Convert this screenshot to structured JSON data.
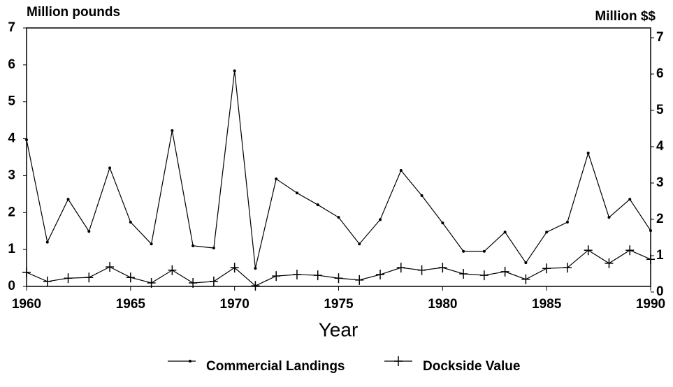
{
  "chart_data": {
    "type": "line",
    "y_label": "Million pounds",
    "y2_label": "Million $$",
    "x_label": "Year",
    "x": [
      1960,
      1961,
      1962,
      1963,
      1964,
      1965,
      1966,
      1967,
      1968,
      1969,
      1970,
      1971,
      1972,
      1973,
      1974,
      1975,
      1976,
      1977,
      1978,
      1979,
      1980,
      1981,
      1982,
      1983,
      1984,
      1985,
      1986,
      1987,
      1988,
      1989,
      1990
    ],
    "series": [
      {
        "name": "Commercial Landings",
        "color": "#000000",
        "marker": "dot",
        "values": [
          3.97,
          1.2,
          2.36,
          1.49,
          3.21,
          1.74,
          1.15,
          4.22,
          1.1,
          1.04,
          5.84,
          0.49,
          2.91,
          2.53,
          2.21,
          1.87,
          1.15,
          1.81,
          3.14,
          2.46,
          1.72,
          0.95,
          0.95,
          1.47,
          0.64,
          1.47,
          1.74,
          3.61,
          1.87,
          2.36,
          1.51
        ]
      },
      {
        "name": "Dockside Value",
        "color": "#000000",
        "marker": "plus",
        "axis": "y2",
        "values": [
          0.54,
          0.29,
          0.38,
          0.4,
          0.69,
          0.4,
          0.25,
          0.6,
          0.25,
          0.29,
          0.67,
          0.17,
          0.44,
          0.48,
          0.46,
          0.38,
          0.33,
          0.48,
          0.67,
          0.6,
          0.67,
          0.5,
          0.46,
          0.56,
          0.35,
          0.65,
          0.67,
          1.15,
          0.79,
          1.15,
          0.9
        ]
      }
    ],
    "xlim": [
      1960,
      1990
    ],
    "xticks": [
      1960,
      1965,
      1970,
      1975,
      1980,
      1985,
      1990
    ],
    "ylim": [
      0,
      7
    ],
    "yticks": [
      0,
      1,
      2,
      3,
      4,
      5,
      6,
      7
    ],
    "y2lim": [
      0,
      7
    ],
    "y2ticks": [
      0,
      1,
      2,
      3,
      4,
      5,
      6,
      7
    ],
    "grid": false
  }
}
